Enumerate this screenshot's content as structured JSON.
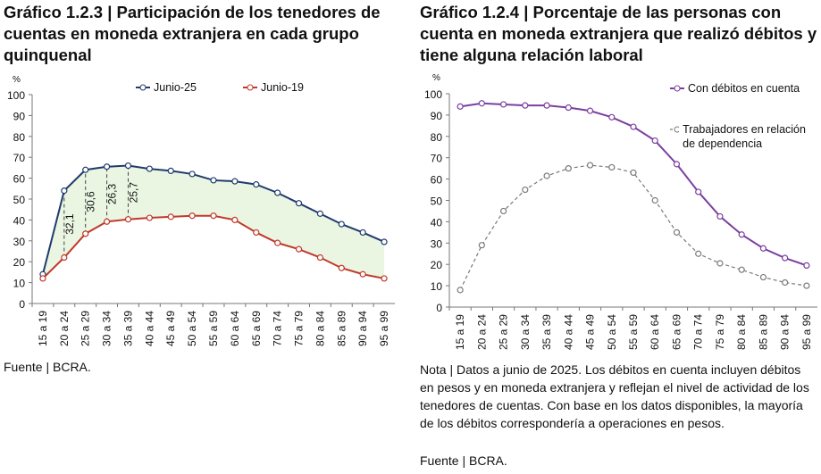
{
  "chart_data": [
    {
      "type": "line",
      "title": "Gráfico 1.2.3 | Participación de los tenedores de cuentas en moneda extranjera en cada grupo quinquenal",
      "y_unit": "%",
      "categories": [
        "15 a 19",
        "20 a 24",
        "25 a 29",
        "30 a 34",
        "35 a 39",
        "40 a 44",
        "45 a 49",
        "50 a 54",
        "55 a 59",
        "60 a 64",
        "65 a 69",
        "70 a 74",
        "75 a 79",
        "80 a 84",
        "85 a 89",
        "90 a 94",
        "95 a 99"
      ],
      "series": [
        {
          "name": "Junio-25",
          "color": "#1f3b6e",
          "values": [
            14,
            54,
            64,
            65.5,
            66,
            64.5,
            63.5,
            62,
            59,
            58.5,
            57,
            53,
            48,
            43,
            38,
            34,
            29.5
          ]
        },
        {
          "name": "Junio-19",
          "color": "#c0392b",
          "values": [
            12,
            22,
            33.4,
            39.2,
            40.3,
            41,
            41.5,
            42,
            42,
            40,
            34,
            29,
            26,
            22,
            17,
            14,
            12
          ]
        }
      ],
      "fill_between": "#eaf6e2",
      "annotations": [
        {
          "x": "20 a 24",
          "value": 32.1,
          "label": "32,1"
        },
        {
          "x": "25 a 29",
          "value": 30.6,
          "label": "30,6"
        },
        {
          "x": "30 a 34",
          "value": 26.3,
          "label": "26,3"
        },
        {
          "x": "35 a 39",
          "value": 25.7,
          "label": "25,7"
        }
      ],
      "ylim": [
        0,
        100
      ],
      "yticks": [
        0,
        10,
        20,
        30,
        40,
        50,
        60,
        70,
        80,
        90,
        100
      ],
      "legend": "top",
      "source": "Fuente | BCRA."
    },
    {
      "type": "line",
      "title": "Gráfico 1.2.4 | Porcentaje de las personas con cuenta en moneda extranjera que realizó débitos y tiene alguna relación laboral",
      "y_unit": "%",
      "categories": [
        "15 a 19",
        "20 a 24",
        "25 a 29",
        "30 a 34",
        "35 a 39",
        "40 a 44",
        "45 a 49",
        "50 a 54",
        "55 a 59",
        "60 a 64",
        "65 a 69",
        "70 a 74",
        "75 a 79",
        "80 a 84",
        "85 a 89",
        "90 a 94",
        "95 a 99"
      ],
      "series": [
        {
          "name": "Con débitos en cuenta",
          "color": "#7b3fa0",
          "values": [
            94,
            95.5,
            95,
            94.5,
            94.5,
            93.5,
            92,
            89,
            84.5,
            78,
            67,
            54,
            42.5,
            34,
            27.5,
            23,
            19.5
          ]
        },
        {
          "name": "Trabajadores en relación de dependencia",
          "color": "#7a7a7a",
          "dashed": true,
          "values": [
            8,
            29,
            45,
            55,
            61.5,
            65,
            66.5,
            65.5,
            63,
            50,
            35,
            25,
            20.5,
            17.5,
            14,
            11.5,
            10
          ]
        }
      ],
      "ylim": [
        0,
        100
      ],
      "yticks": [
        0,
        10,
        20,
        30,
        40,
        50,
        60,
        70,
        80,
        90,
        100
      ],
      "legend": "top-right",
      "note": "Nota | Datos a junio de 2025. Los débitos en cuenta incluyen débitos en pesos y en moneda extranjera y reflejan el nivel de actividad de los tenedores de cuentas. Con base en los datos disponibles, la mayoría de los débitos correspondería a operaciones en pesos.",
      "source": "Fuente | BCRA."
    }
  ]
}
